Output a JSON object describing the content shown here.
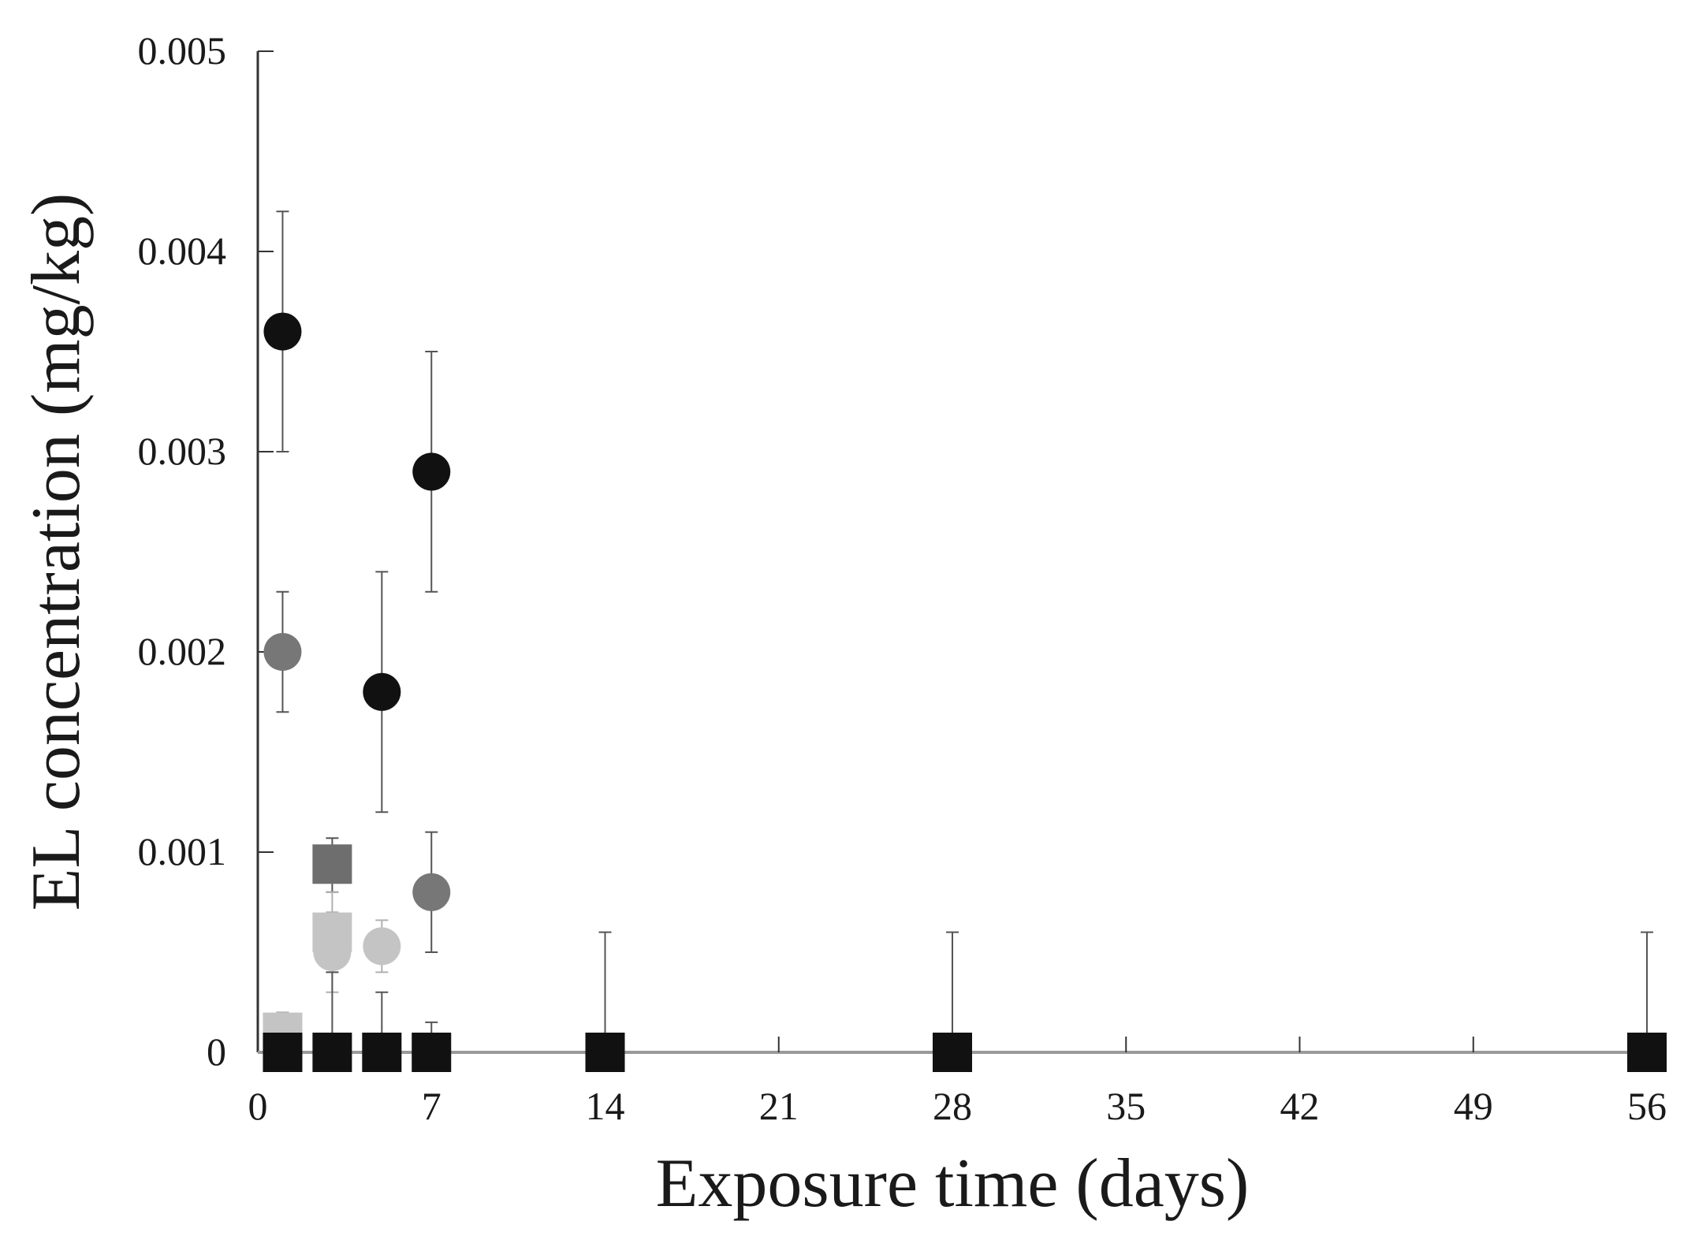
{
  "chart_data": {
    "type": "scatter",
    "title": "",
    "xlabel": "Exposure time (days)",
    "ylabel": "EL concentration (mg/kg)",
    "xlim": [
      0,
      56
    ],
    "ylim": [
      0,
      0.005
    ],
    "x_ticks": [
      0,
      7,
      14,
      21,
      28,
      35,
      42,
      49,
      56
    ],
    "x_tick_labels": [
      "0",
      "7",
      "14",
      "21",
      "28",
      "35",
      "42",
      "49",
      "56"
    ],
    "y_ticks": [
      0,
      0.001,
      0.002,
      0.003,
      0.004,
      0.005
    ],
    "y_tick_labels": [
      "0",
      "0.001",
      "0.002",
      "0.003",
      "0.004",
      "0.005"
    ],
    "grid": false,
    "legend": "none",
    "series": [
      {
        "marker": "circle",
        "color": "#111111",
        "points": [
          {
            "x": 1,
            "y": 0.0036,
            "err_low": 0.003,
            "err_high": 0.0042
          },
          {
            "x": 5,
            "y": 0.0018,
            "err_low": 0.0012,
            "err_high": 0.0024
          },
          {
            "x": 7,
            "y": 0.0029,
            "err_low": 0.0023,
            "err_high": 0.0035
          }
        ]
      },
      {
        "marker": "circle",
        "color": "#777777",
        "points": [
          {
            "x": 1,
            "y": 0.002,
            "err_low": 0.0017,
            "err_high": 0.0023
          },
          {
            "x": 7,
            "y": 0.0008,
            "err_low": 0.0005,
            "err_high": 0.0011
          }
        ]
      },
      {
        "marker": "circle",
        "color": "#c4c4c4",
        "points": [
          {
            "x": 3,
            "y": 0.0005,
            "err_low": 0.0003,
            "err_high": 0.0007
          },
          {
            "x": 5,
            "y": 0.00053,
            "err_low": 0.0004,
            "err_high": 0.00066
          }
        ]
      },
      {
        "marker": "square",
        "color": "#6e6e6e",
        "points": [
          {
            "x": 3,
            "y": 0.00094,
            "err_low": 0.0008,
            "err_high": 0.00107
          }
        ]
      },
      {
        "marker": "square",
        "color": "#c4c4c4",
        "points": [
          {
            "x": 1,
            "y": 0.0001,
            "err_low": 0.0,
            "err_high": 0.0002
          },
          {
            "x": 3,
            "y": 0.0006,
            "err_low": 0.0004,
            "err_high": 0.0008
          }
        ]
      },
      {
        "marker": "square",
        "color": "#111111",
        "points": [
          {
            "x": 1,
            "y": 0,
            "err_low": 0,
            "err_high": 0
          },
          {
            "x": 3,
            "y": 0,
            "err_low": 0,
            "err_high": 0.0004
          },
          {
            "x": 5,
            "y": 0,
            "err_low": 0,
            "err_high": 0.0003
          },
          {
            "x": 7,
            "y": 0,
            "err_low": 0,
            "err_high": 0.00015
          },
          {
            "x": 14,
            "y": 0,
            "err_low": 0,
            "err_high": 0.0006
          },
          {
            "x": 28,
            "y": 0,
            "err_low": 0,
            "err_high": 0.0006
          },
          {
            "x": 56,
            "y": 0,
            "err_low": 0,
            "err_high": 0.0006
          }
        ]
      }
    ]
  }
}
